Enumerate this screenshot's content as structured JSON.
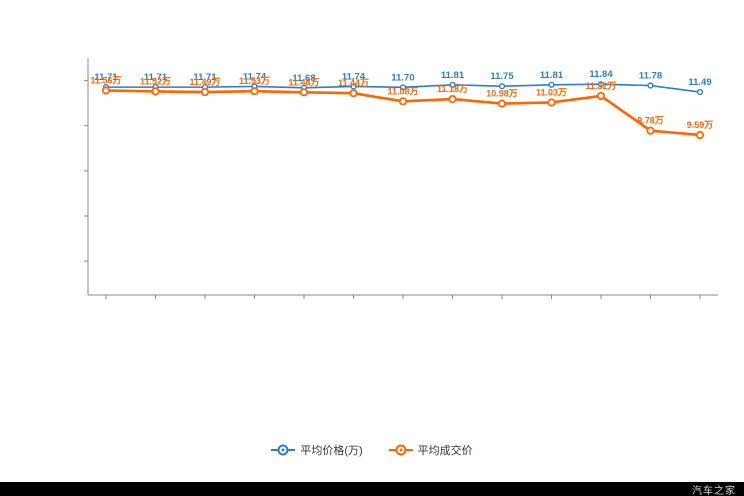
{
  "watermark": "汽车之家",
  "legend": [
    {
      "label": "平均价格(万)",
      "color": "#2f7ec7"
    },
    {
      "label": "平均成交价",
      "color": "#ff6600"
    }
  ],
  "chart_data": {
    "type": "line",
    "title": "",
    "xlabel": "",
    "ylabel": "",
    "ylim": [
      2.5,
      13
    ],
    "grid": false,
    "legend_position": "bottom",
    "series": [
      {
        "name": "平均价格(万)",
        "color": "#2f7ec7",
        "values": [
          11.71,
          11.71,
          11.71,
          11.74,
          11.68,
          11.74,
          11.7,
          11.81,
          11.75,
          11.81,
          11.84,
          11.78,
          11.49
        ],
        "labels": [
          "11.71",
          "11.71",
          "11.71",
          "11.74",
          "11.68",
          "11.74",
          "11.70",
          "11.81",
          "11.75",
          "11.81",
          "11.84",
          "11.78",
          "11.49"
        ]
      },
      {
        "name": "平均成交价",
        "color": "#ff6600",
        "values": [
          11.56,
          11.52,
          11.49,
          11.53,
          11.48,
          11.44,
          11.08,
          11.18,
          10.98,
          11.03,
          11.32,
          9.78,
          9.59
        ],
        "labels": [
          "11.56万",
          "11.52万",
          "11.49万",
          "11.53万",
          "11.48万",
          "11.44万",
          "11.08万",
          "11.18万",
          "10.98万",
          "11.03万",
          "11.32万",
          "9.78万",
          "9.59万"
        ]
      }
    ]
  }
}
